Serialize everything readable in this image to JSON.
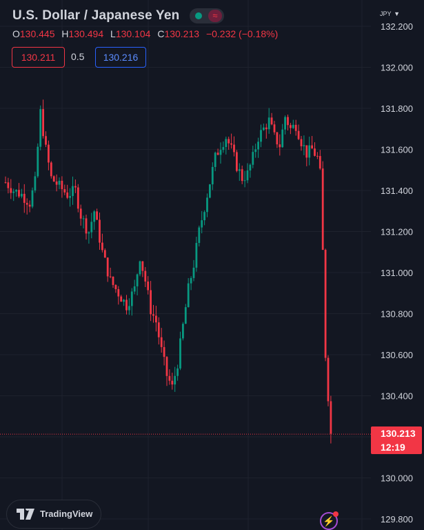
{
  "header": {
    "title": "U.S. Dollar / Japanese Yen",
    "ohlc": [
      {
        "key": "O",
        "value": "130.445"
      },
      {
        "key": "H",
        "value": "130.494"
      },
      {
        "key": "L",
        "value": "130.104"
      },
      {
        "key": "C",
        "value": "130.213"
      },
      {
        "key": "",
        "value": "−0.232 (−0.18%)"
      }
    ],
    "sell_price": "130.211",
    "spread": "0.5",
    "buy_price": "130.216"
  },
  "currency": "JPY",
  "last_price": {
    "value": "130.213",
    "countdown": "12:19"
  },
  "brand": "TradingView",
  "colors": {
    "background": "#131722",
    "up": "#089981",
    "down": "#f23645",
    "grid": "#2a2e39",
    "text": "#d1d4dc"
  },
  "chart_data": {
    "type": "candlestick",
    "ylim": [
      129.8,
      132.2
    ],
    "y_ticks": [
      "132.200",
      "132.000",
      "131.800",
      "131.600",
      "131.400",
      "131.200",
      "131.000",
      "130.800",
      "130.600",
      "130.400",
      "130.200",
      "130.000",
      "129.800"
    ],
    "last_price_line": 130.213,
    "close_path": [
      [
        0,
        131.44
      ],
      [
        3,
        131.4
      ],
      [
        6,
        131.38
      ],
      [
        9,
        131.34
      ],
      [
        11,
        131.44
      ],
      [
        13,
        131.78
      ],
      [
        15,
        131.6
      ],
      [
        17,
        131.46
      ],
      [
        20,
        131.42
      ],
      [
        23,
        131.38
      ],
      [
        26,
        131.4
      ],
      [
        28,
        131.28
      ],
      [
        30,
        131.22
      ],
      [
        31,
        131.2
      ],
      [
        33,
        131.3
      ],
      [
        36,
        131.1
      ],
      [
        39,
        130.96
      ],
      [
        42,
        130.9
      ],
      [
        45,
        130.84
      ],
      [
        48,
        130.92
      ],
      [
        50,
        131.08
      ],
      [
        52,
        130.96
      ],
      [
        54,
        130.82
      ],
      [
        56,
        130.76
      ],
      [
        58,
        130.62
      ],
      [
        60,
        130.5
      ],
      [
        62,
        130.44
      ],
      [
        64,
        130.56
      ],
      [
        66,
        130.74
      ],
      [
        68,
        130.92
      ],
      [
        70,
        131.04
      ],
      [
        72,
        131.2
      ],
      [
        74,
        131.32
      ],
      [
        76,
        131.44
      ],
      [
        78,
        131.56
      ],
      [
        80,
        131.62
      ],
      [
        82,
        131.66
      ],
      [
        84,
        131.6
      ],
      [
        86,
        131.52
      ],
      [
        88,
        131.46
      ],
      [
        90,
        131.48
      ],
      [
        92,
        131.56
      ],
      [
        94,
        131.66
      ],
      [
        96,
        131.7
      ],
      [
        98,
        131.74
      ],
      [
        100,
        131.66
      ],
      [
        102,
        131.62
      ],
      [
        104,
        131.76
      ],
      [
        106,
        131.7
      ],
      [
        108,
        131.72
      ],
      [
        110,
        131.64
      ],
      [
        112,
        131.58
      ],
      [
        114,
        131.6
      ],
      [
        116,
        131.56
      ],
      [
        117,
        131.48
      ],
      [
        118,
        131.1
      ],
      [
        119,
        130.6
      ],
      [
        120,
        130.4
      ],
      [
        121,
        130.213
      ]
    ]
  }
}
